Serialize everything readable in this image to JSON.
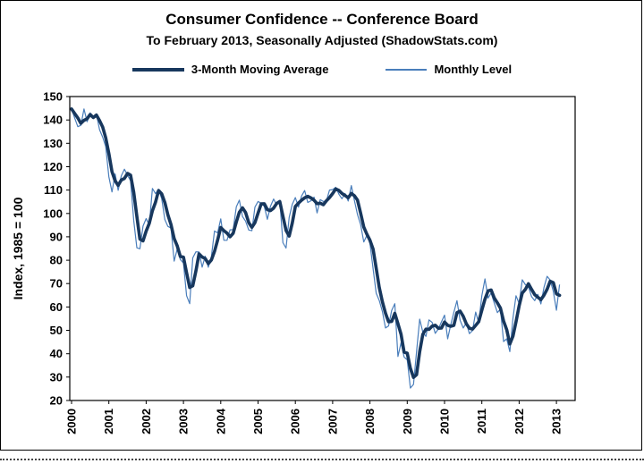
{
  "chart_data": {
    "type": "line",
    "title": "Consumer Confidence -- Conference Board",
    "subtitle": "To February 2013, Seasonally Adjusted (ShadowStats.com)",
    "ylabel": "Index, 1985 = 100",
    "ylim": [
      20,
      150
    ],
    "ytick_step": 10,
    "x_range": "Jan 2000 - Feb 2013",
    "x_tick_labels": [
      "2000",
      "2001",
      "2002",
      "2003",
      "2004",
      "2005",
      "2006",
      "2007",
      "2008",
      "2009",
      "2010",
      "2011",
      "2012",
      "2013"
    ],
    "grid": false,
    "legend_position": "top",
    "series": [
      {
        "name": "3-Month Moving Average",
        "type": "moving_average",
        "window": 3,
        "color": "#17375d",
        "stroke_width": 3.6
      },
      {
        "name": "Monthly Level",
        "type": "monthly",
        "color": "#4a7ebb",
        "stroke_width": 1.2
      }
    ],
    "monthly": [
      144.7,
      140.8,
      137.1,
      137.7,
      144.7,
      139.2,
      143.0,
      140.8,
      142.5,
      135.8,
      132.6,
      128.6,
      115.7,
      109.2,
      116.9,
      109.9,
      116.1,
      118.9,
      116.3,
      114.0,
      97.0,
      85.3,
      84.9,
      94.6,
      97.8,
      95.0,
      110.7,
      108.5,
      110.3,
      106.3,
      97.4,
      94.5,
      93.7,
      79.6,
      84.9,
      80.3,
      78.8,
      64.8,
      61.4,
      81.0,
      83.6,
      83.5,
      77.0,
      81.7,
      77.0,
      81.7,
      92.5,
      91.7,
      97.7,
      88.5,
      88.5,
      93.0,
      93.1,
      102.8,
      105.7,
      98.7,
      96.7,
      92.9,
      92.6,
      102.7,
      105.1,
      104.4,
      103.0,
      97.5,
      103.1,
      106.2,
      103.6,
      105.5,
      87.5,
      85.2,
      98.3,
      103.8,
      106.8,
      102.7,
      107.5,
      109.8,
      104.7,
      105.4,
      107.0,
      100.2,
      105.9,
      105.1,
      105.3,
      110.0,
      110.2,
      111.2,
      108.2,
      106.3,
      108.5,
      105.3,
      111.9,
      105.6,
      99.5,
      95.2,
      87.8,
      90.6,
      87.3,
      76.4,
      65.9,
      62.8,
      58.1,
      51.0,
      51.9,
      58.5,
      61.4,
      38.8,
      44.7,
      38.6,
      37.4,
      25.3,
      26.9,
      40.8,
      54.8,
      49.3,
      47.4,
      54.5,
      53.4,
      48.7,
      50.6,
      53.6,
      56.5,
      46.4,
      52.3,
      57.7,
      62.7,
      54.3,
      51.0,
      53.2,
      48.6,
      49.9,
      57.8,
      53.3,
      64.8,
      72.0,
      63.8,
      66.0,
      61.7,
      57.6,
      59.2,
      45.2,
      46.4,
      40.9,
      55.2,
      64.8,
      61.5,
      71.6,
      69.5,
      68.7,
      64.4,
      62.7,
      65.4,
      61.3,
      68.4,
      73.1,
      71.5,
      66.7,
      58.6,
      69.6
    ]
  }
}
